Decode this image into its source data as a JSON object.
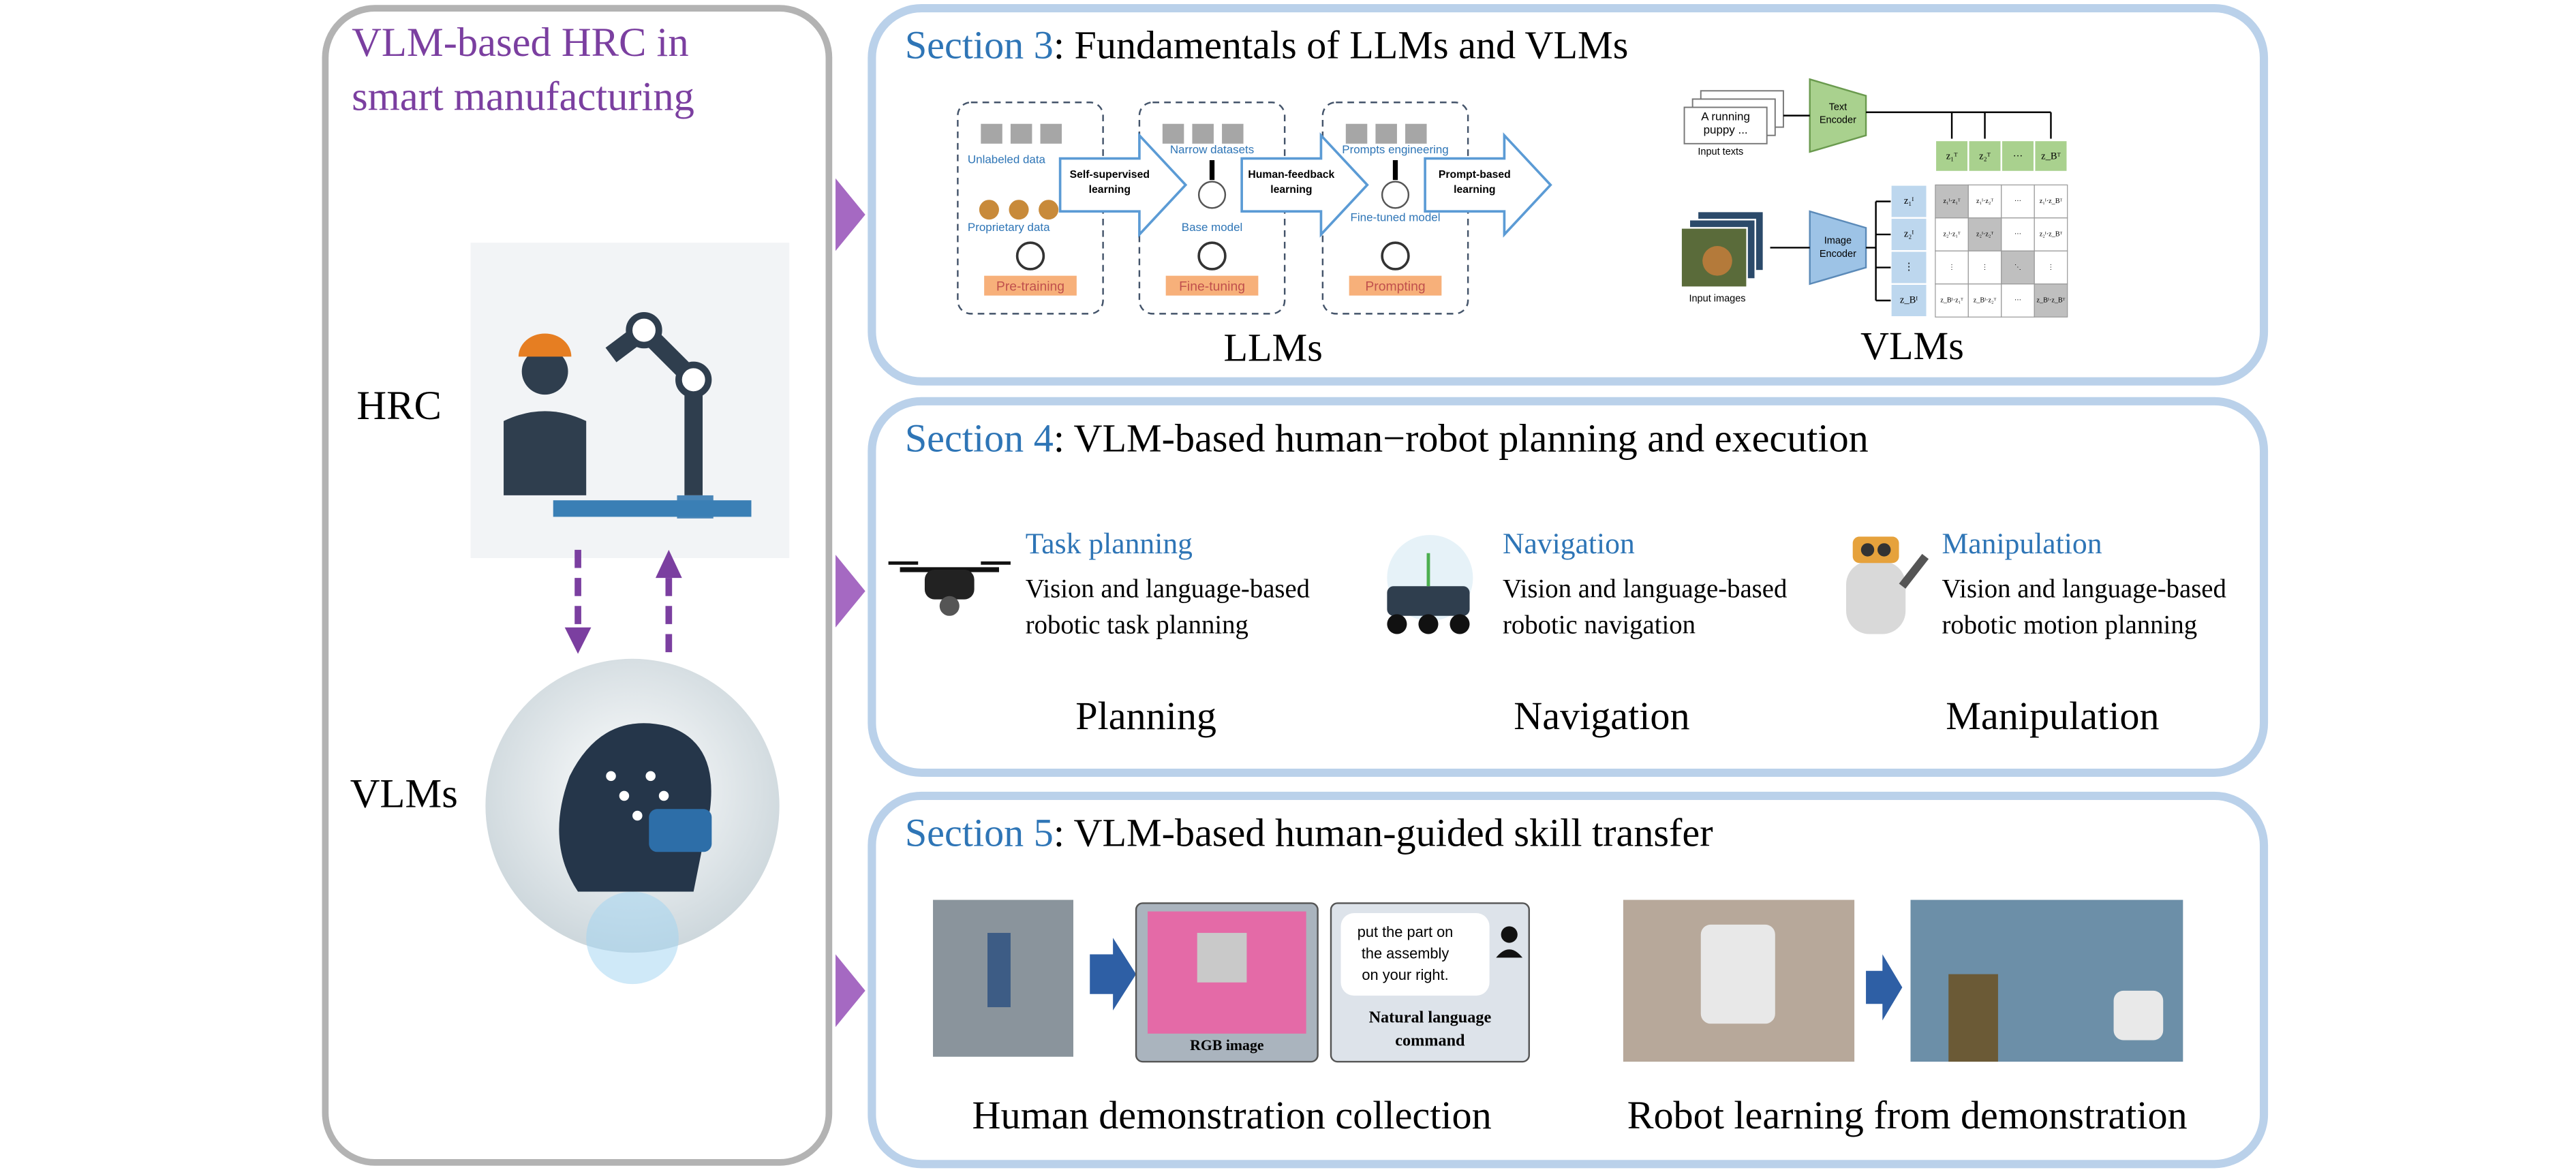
{
  "left_panel": {
    "title": [
      "VLM-based HRC in",
      "smart manufacturing"
    ],
    "hrc_label": "HRC",
    "vlms_label": "VLMs"
  },
  "sections": [
    {
      "number": "Section 3",
      "title": ": Fundamentals of LLMs and VLMs",
      "llm_figure": {
        "stages": [
          {
            "inputs": [
              "Unlabeled data",
              "Proprietary data"
            ],
            "stage": "Pre-training"
          },
          {
            "inputs": [
              "Narrow datasets",
              "Base model"
            ],
            "stage": "Fine-tuning"
          },
          {
            "inputs": [
              "Prompts engineering",
              "Fine-tuned model"
            ],
            "stage": "Prompting"
          }
        ],
        "arrows": [
          [
            "Self-supervised",
            "learning"
          ],
          [
            "Human-feedback",
            "learning"
          ],
          [
            "Prompt-based",
            "learning"
          ]
        ]
      },
      "vlm_figure": {
        "input_text": [
          "A running",
          "puppy ..."
        ],
        "input_texts_label": "Input texts",
        "text_encoder": [
          "Text",
          "Encoder"
        ],
        "image_encoder": [
          "Image",
          "Encoder"
        ],
        "input_images_label": "Input images",
        "text_tokens": [
          "z₁ᵀ",
          "z₂ᵀ",
          "···",
          "z_Bᵀ"
        ],
        "image_tokens": [
          "z₁ᴵ",
          "z₂ᴵ",
          "⋮",
          "z_Bᴵ"
        ],
        "matrix": [
          [
            "z₁ᴵ·z₁ᵀ",
            "z₁ᴵ·z₂ᵀ",
            "···",
            "z₁ᴵ·z_Bᵀ"
          ],
          [
            "z₂ᴵ·z₁ᵀ",
            "z₂ᴵ·z₂ᵀ",
            "···",
            "z₂ᴵ·z_Bᵀ"
          ],
          [
            "⋮",
            "⋮",
            "⋱",
            "⋮"
          ],
          [
            "z_Bᴵ·z₁ᵀ",
            "z_Bᴵ·z₂ᵀ",
            "···",
            "z_Bᴵ·z_Bᵀ"
          ]
        ]
      },
      "labels": [
        "LLMs",
        "VLMs"
      ]
    },
    {
      "number": "Section 4",
      "title": ": VLM-based human−robot planning and execution",
      "items": [
        {
          "heading": "Task planning",
          "description": [
            "Vision and language-based",
            "robotic task planning"
          ],
          "label": "Planning"
        },
        {
          "heading": "Navigation",
          "description": [
            "Vision and language-based",
            "robotic navigation"
          ],
          "label": "Navigation"
        },
        {
          "heading": "Manipulation",
          "description": [
            "Vision and language-based",
            "robotic motion planning"
          ],
          "label": "Manipulation"
        }
      ]
    },
    {
      "number": "Section 5",
      "title": ": VLM-based human-guided skill transfer",
      "figure": {
        "rgb_label": "RGB image",
        "command": [
          "put the part on",
          "the assembly",
          "on your right."
        ],
        "command_label": [
          "Natural language",
          "command"
        ]
      },
      "labels": [
        "Human demonstration collection",
        "Robot learning from demonstration"
      ]
    }
  ]
}
